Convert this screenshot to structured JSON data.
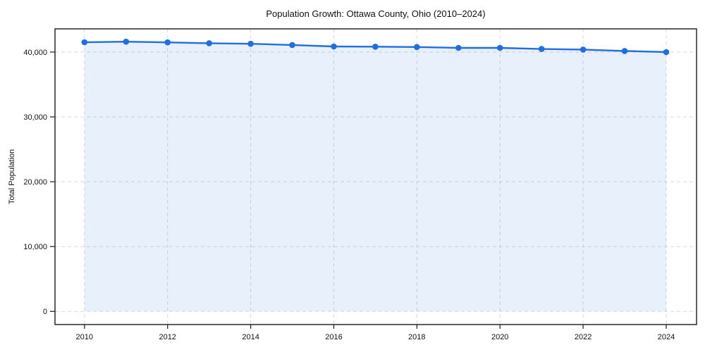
{
  "chart_data": {
    "type": "line",
    "title": "Population Growth: Ottawa County, Ohio (2010–2024)",
    "xlabel": "",
    "ylabel": "Total Population",
    "x": [
      2010,
      2011,
      2012,
      2013,
      2014,
      2015,
      2016,
      2017,
      2018,
      2019,
      2020,
      2021,
      2022,
      2023,
      2024
    ],
    "series": [
      {
        "name": "Total Population",
        "values": [
          41520,
          41600,
          41490,
          41370,
          41280,
          41090,
          40870,
          40830,
          40780,
          40650,
          40650,
          40470,
          40390,
          40170,
          40000
        ]
      }
    ],
    "xticks": [
      2010,
      2012,
      2014,
      2016,
      2018,
      2020,
      2022,
      2024
    ],
    "yticks": [
      0,
      10000,
      20000,
      30000,
      40000
    ],
    "ytick_labels": [
      "0",
      "10,000",
      "20,000",
      "30,000",
      "40,000"
    ],
    "xlim": [
      2009.29,
      2024.73
    ],
    "ylim": [
      -2030,
      43580
    ],
    "grid": "on",
    "grid_style": "dashed",
    "legend": "none",
    "markers": true,
    "area_fill": true,
    "line_color": "#1f6fe0",
    "fill_color": "#1f6fe0",
    "fill_opacity": 0.1,
    "grid_color": "#d9d9d9",
    "border_color": "#1a1a1a",
    "text_color": "#111111",
    "background": "#ffffff"
  }
}
